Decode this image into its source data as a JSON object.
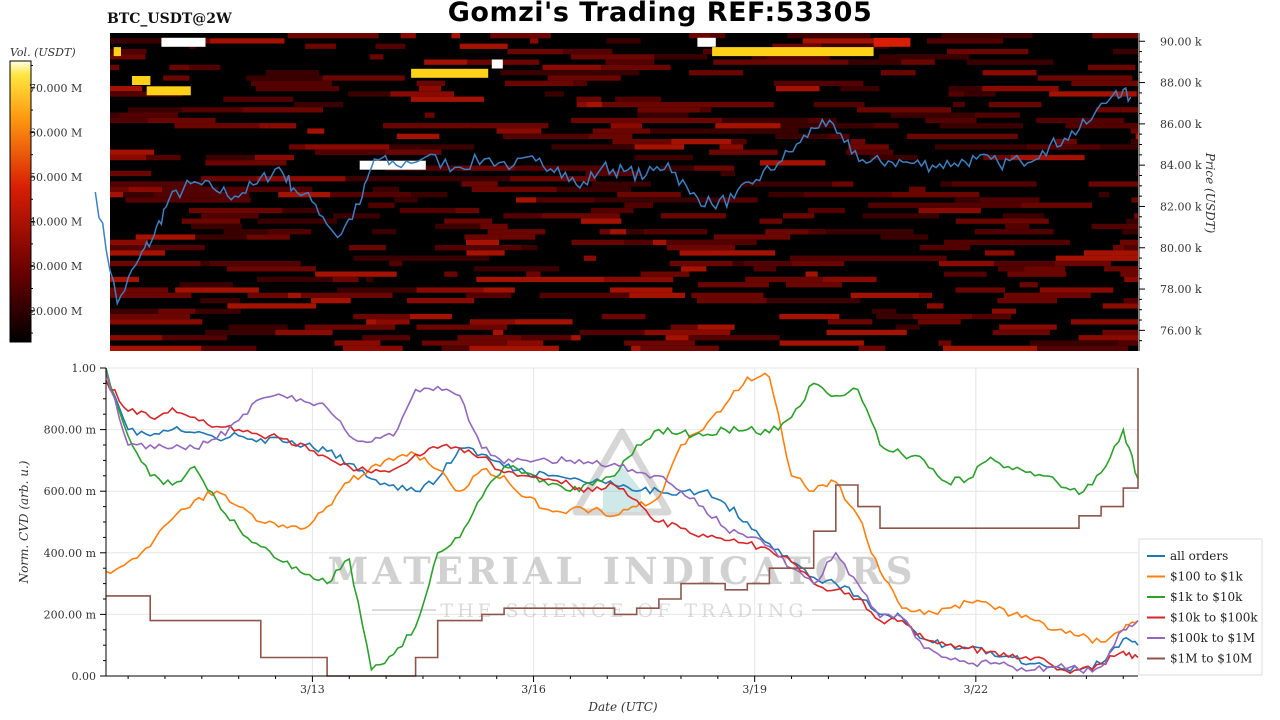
{
  "header": {
    "pair": "BTC_USDT@2W",
    "title": "Gomzi's Trading REF:53305"
  },
  "watermark": {
    "brand": "MATERIAL INDICATORS",
    "tagline": "THE SCIENCE OF TRADING"
  },
  "colors": {
    "price_line": "#3d7fc1",
    "heatmap_bg": "#000000",
    "heatmap_low": "#5a0000",
    "heatmap_mid": "#d81e05",
    "heatmap_high": "#ffd21a",
    "heatmap_max": "#ffffff"
  },
  "chart_data": [
    {
      "type": "heatmap",
      "ylabel": "Price (USDT)",
      "ylim": [
        75000,
        90400
      ],
      "y_ticks": [
        90000,
        88000,
        86000,
        84000,
        82000,
        80000,
        78000,
        76000
      ],
      "y_tick_labels": [
        "90.00 k",
        "88.00 k",
        "86.00 k",
        "84.00 k",
        "82.00 k",
        "80.00 k",
        "78.00 k",
        "76.00 k"
      ],
      "colorbar": {
        "label": "Vol. (USDT)",
        "range": [
          13000000,
          76000000
        ],
        "ticks": [
          70000000,
          60000000,
          50000000,
          40000000,
          30000000,
          20000000
        ],
        "tick_labels": [
          "70.000 M",
          "60.000 M",
          "50.000 M",
          "40.000 M",
          "30.000 M",
          "20.000 M"
        ]
      },
      "price_series": {
        "x": [
          10.0,
          10.3,
          10.6,
          10.8,
          11.0,
          11.3,
          11.6,
          11.9,
          12.2,
          12.5,
          12.7,
          13.0,
          13.3,
          13.6,
          13.8,
          14.1,
          14.5,
          14.9,
          15.3,
          15.7,
          16.0,
          16.3,
          16.6,
          16.9,
          17.2,
          17.5,
          17.8,
          18.1,
          18.4,
          18.7,
          19.0,
          19.3,
          19.6,
          19.9,
          20.2,
          20.5,
          20.8,
          21.1,
          21.4,
          21.7,
          22.0,
          22.3,
          22.6,
          22.9,
          23.2,
          23.5,
          23.9,
          24.1
        ],
        "y": [
          82700,
          77300,
          79500,
          80600,
          82300,
          83100,
          82900,
          82500,
          83100,
          83900,
          82900,
          82100,
          80500,
          82100,
          84300,
          84000,
          84400,
          83900,
          84300,
          84000,
          84200,
          83900,
          82900,
          83900,
          83700,
          83500,
          84100,
          82600,
          82100,
          82400,
          83300,
          84100,
          85100,
          86200,
          85100,
          84100,
          84200,
          84100,
          84000,
          84100,
          84300,
          84100,
          84200,
          84700,
          85300,
          86000,
          87600,
          87300
        ]
      },
      "liquidity_bands": [
        {
          "x0": 10.9,
          "x1": 11.5,
          "price": 89950,
          "level": "max"
        },
        {
          "x0": 13.6,
          "x1": 14.5,
          "price": 84000,
          "level": "max"
        },
        {
          "x0": 15.4,
          "x1": 15.55,
          "price": 88900,
          "level": "max"
        },
        {
          "x0": 18.2,
          "x1": 18.45,
          "price": 89950,
          "level": "max"
        },
        {
          "x0": 14.3,
          "x1": 15.35,
          "price": 88450,
          "level": "high"
        },
        {
          "x0": 18.4,
          "x1": 20.6,
          "price": 89500,
          "level": "high"
        },
        {
          "x0": 10.5,
          "x1": 10.75,
          "price": 88100,
          "level": "high"
        },
        {
          "x0": 10.7,
          "x1": 11.3,
          "price": 87600,
          "level": "high"
        },
        {
          "x0": 10.25,
          "x1": 10.35,
          "price": 89500,
          "level": "high"
        },
        {
          "x0": 20.6,
          "x1": 21.1,
          "price": 89950,
          "level": "mid"
        }
      ]
    },
    {
      "type": "line",
      "xlabel": "Date (UTC)",
      "ylabel": "Norm. CVD (arb. u.)",
      "xlim": [
        10.2,
        24.2
      ],
      "ylim": [
        0,
        1
      ],
      "x_ticks": [
        13,
        16,
        19,
        22
      ],
      "x_tick_labels": [
        "3/13",
        "3/16",
        "3/19",
        "3/22"
      ],
      "y_ticks": [
        1.0,
        0.8,
        0.6,
        0.4,
        0.2,
        0.0
      ],
      "y_tick_labels": [
        "1.00",
        "800.00 m",
        "600.00 m",
        "400.00 m",
        "200.00 m",
        "0.00"
      ],
      "grid": true,
      "legend_position": "right",
      "x": [
        10.2,
        10.5,
        10.8,
        11.1,
        11.4,
        11.7,
        12.0,
        12.3,
        12.6,
        12.9,
        13.2,
        13.5,
        13.8,
        14.1,
        14.4,
        14.7,
        15.0,
        15.3,
        15.6,
        15.9,
        16.2,
        16.5,
        16.8,
        17.1,
        17.4,
        17.7,
        18.0,
        18.3,
        18.6,
        18.9,
        19.2,
        19.5,
        19.8,
        20.1,
        20.4,
        20.7,
        21.0,
        21.3,
        21.6,
        21.9,
        22.2,
        22.5,
        22.8,
        23.1,
        23.4,
        23.7,
        24.0,
        24.2
      ],
      "series": [
        {
          "name": "all orders",
          "color": "#1f77b4",
          "values": [
            0.99,
            0.8,
            0.78,
            0.8,
            0.79,
            0.77,
            0.78,
            0.77,
            0.76,
            0.75,
            0.73,
            0.69,
            0.64,
            0.62,
            0.6,
            0.64,
            0.74,
            0.72,
            0.68,
            0.66,
            0.65,
            0.64,
            0.63,
            0.62,
            0.6,
            0.6,
            0.6,
            0.6,
            0.56,
            0.5,
            0.43,
            0.37,
            0.32,
            0.3,
            0.26,
            0.2,
            0.19,
            0.12,
            0.1,
            0.09,
            0.08,
            0.06,
            0.04,
            0.03,
            0.02,
            0.04,
            0.12,
            0.1
          ]
        },
        {
          "name": "$100 to $1k",
          "color": "#ff7f0e",
          "values": [
            0.34,
            0.37,
            0.42,
            0.51,
            0.57,
            0.6,
            0.55,
            0.5,
            0.49,
            0.48,
            0.55,
            0.63,
            0.68,
            0.7,
            0.72,
            0.67,
            0.6,
            0.67,
            0.65,
            0.58,
            0.54,
            0.54,
            0.54,
            0.52,
            0.55,
            0.58,
            0.75,
            0.8,
            0.88,
            0.97,
            0.97,
            0.65,
            0.6,
            0.63,
            0.52,
            0.34,
            0.22,
            0.2,
            0.22,
            0.24,
            0.23,
            0.2,
            0.18,
            0.15,
            0.13,
            0.11,
            0.15,
            0.18
          ]
        },
        {
          "name": "$1k to $10k",
          "color": "#2ca02c",
          "values": [
            1.0,
            0.78,
            0.65,
            0.62,
            0.68,
            0.57,
            0.48,
            0.42,
            0.37,
            0.33,
            0.3,
            0.38,
            0.02,
            0.07,
            0.16,
            0.4,
            0.45,
            0.58,
            0.68,
            0.66,
            0.62,
            0.6,
            0.62,
            0.65,
            0.75,
            0.8,
            0.79,
            0.78,
            0.8,
            0.8,
            0.79,
            0.84,
            0.95,
            0.91,
            0.93,
            0.75,
            0.72,
            0.7,
            0.63,
            0.64,
            0.71,
            0.67,
            0.65,
            0.63,
            0.59,
            0.66,
            0.8,
            0.64
          ]
        },
        {
          "name": "$10k to $100k",
          "color": "#d62728",
          "values": [
            0.96,
            0.86,
            0.84,
            0.87,
            0.84,
            0.81,
            0.8,
            0.78,
            0.77,
            0.75,
            0.71,
            0.68,
            0.66,
            0.67,
            0.72,
            0.74,
            0.74,
            0.71,
            0.66,
            0.65,
            0.64,
            0.62,
            0.6,
            0.62,
            0.57,
            0.5,
            0.48,
            0.46,
            0.44,
            0.43,
            0.41,
            0.37,
            0.3,
            0.28,
            0.25,
            0.18,
            0.18,
            0.12,
            0.1,
            0.09,
            0.08,
            0.07,
            0.06,
            0.02,
            0.02,
            0.04,
            0.08,
            0.06
          ]
        },
        {
          "name": "$100k to $1M",
          "color": "#9467bd",
          "values": [
            0.99,
            0.75,
            0.75,
            0.74,
            0.74,
            0.77,
            0.83,
            0.9,
            0.91,
            0.89,
            0.87,
            0.78,
            0.76,
            0.78,
            0.93,
            0.94,
            0.91,
            0.74,
            0.69,
            0.7,
            0.7,
            0.7,
            0.69,
            0.69,
            0.66,
            0.65,
            0.6,
            0.55,
            0.48,
            0.45,
            0.42,
            0.35,
            0.3,
            0.4,
            0.3,
            0.19,
            0.19,
            0.09,
            0.06,
            0.04,
            0.04,
            0.03,
            0.02,
            0.03,
            0.02,
            0.03,
            0.15,
            0.18
          ]
        },
        {
          "name": "$1M to $10M",
          "color": "#8c564b",
          "values": [
            0.26,
            0.26,
            0.18,
            0.18,
            0.18,
            0.18,
            0.18,
            0.06,
            0.06,
            0.06,
            0.0,
            0.0,
            0.0,
            0.0,
            0.06,
            0.18,
            0.18,
            0.2,
            0.22,
            0.22,
            0.22,
            0.22,
            0.22,
            0.2,
            0.22,
            0.25,
            0.3,
            0.3,
            0.28,
            0.3,
            0.35,
            0.35,
            0.47,
            0.62,
            0.55,
            0.48,
            0.48,
            0.48,
            0.48,
            0.48,
            0.48,
            0.48,
            0.48,
            0.48,
            0.52,
            0.55,
            0.61,
            1.0
          ]
        }
      ]
    }
  ]
}
